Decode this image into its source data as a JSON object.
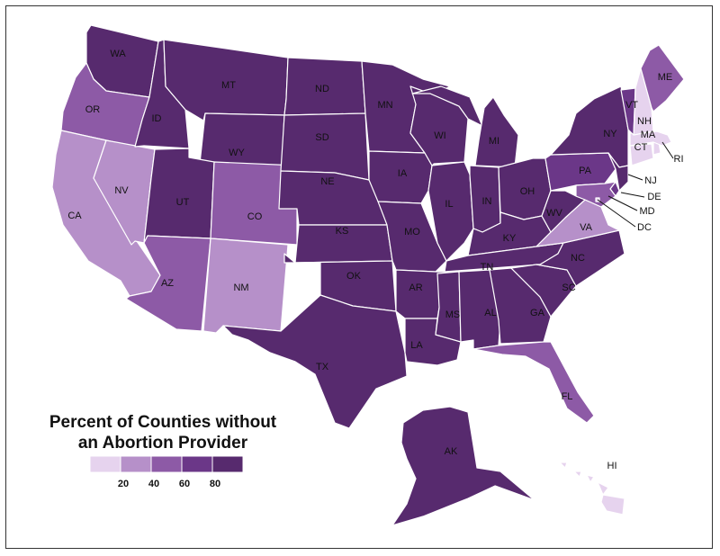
{
  "legend": {
    "title_line1": "Percent of Counties without",
    "title_line2": "an Abortion Provider",
    "ticks": [
      "20",
      "40",
      "60",
      "80"
    ],
    "colors": [
      "#e6d3ee",
      "#b690c9",
      "#8d5aa6",
      "#6b3788",
      "#572a6e"
    ]
  },
  "states": [
    {
      "code": "WA",
      "label": "WA",
      "bin": 4
    },
    {
      "code": "OR",
      "label": "OR",
      "bin": 2
    },
    {
      "code": "CA",
      "label": "CA",
      "bin": 1
    },
    {
      "code": "NV",
      "label": "NV",
      "bin": 1
    },
    {
      "code": "ID",
      "label": "ID",
      "bin": 4
    },
    {
      "code": "MT",
      "label": "MT",
      "bin": 4
    },
    {
      "code": "WY",
      "label": "WY",
      "bin": 4
    },
    {
      "code": "UT",
      "label": "UT",
      "bin": 4
    },
    {
      "code": "AZ",
      "label": "AZ",
      "bin": 2
    },
    {
      "code": "CO",
      "label": "CO",
      "bin": 2
    },
    {
      "code": "NM",
      "label": "NM",
      "bin": 1
    },
    {
      "code": "ND",
      "label": "ND",
      "bin": 4
    },
    {
      "code": "SD",
      "label": "SD",
      "bin": 4
    },
    {
      "code": "NE",
      "label": "NE",
      "bin": 4
    },
    {
      "code": "KS",
      "label": "KS",
      "bin": 4
    },
    {
      "code": "OK",
      "label": "OK",
      "bin": 4
    },
    {
      "code": "TX",
      "label": "TX",
      "bin": 4
    },
    {
      "code": "MN",
      "label": "MN",
      "bin": 4
    },
    {
      "code": "IA",
      "label": "IA",
      "bin": 4
    },
    {
      "code": "MO",
      "label": "MO",
      "bin": 4
    },
    {
      "code": "AR",
      "label": "AR",
      "bin": 4
    },
    {
      "code": "LA",
      "label": "LA",
      "bin": 4
    },
    {
      "code": "WI",
      "label": "WI",
      "bin": 4
    },
    {
      "code": "IL",
      "label": "IL",
      "bin": 4
    },
    {
      "code": "MI",
      "label": "MI",
      "bin": 4
    },
    {
      "code": "IN",
      "label": "IN",
      "bin": 4
    },
    {
      "code": "OH",
      "label": "OH",
      "bin": 4
    },
    {
      "code": "KY",
      "label": "KY",
      "bin": 4
    },
    {
      "code": "TN",
      "label": "TN",
      "bin": 4
    },
    {
      "code": "MS",
      "label": "MS",
      "bin": 4
    },
    {
      "code": "AL",
      "label": "AL",
      "bin": 4
    },
    {
      "code": "GA",
      "label": "GA",
      "bin": 4
    },
    {
      "code": "FL",
      "label": "FL",
      "bin": 2
    },
    {
      "code": "SC",
      "label": "SC",
      "bin": 4
    },
    {
      "code": "NC",
      "label": "NC",
      "bin": 4
    },
    {
      "code": "VA",
      "label": "VA",
      "bin": 1
    },
    {
      "code": "WV",
      "label": "WV",
      "bin": 4
    },
    {
      "code": "PA",
      "label": "PA",
      "bin": 3
    },
    {
      "code": "NY",
      "label": "NY",
      "bin": 4
    },
    {
      "code": "NJ",
      "label": "NJ",
      "bin": 4
    },
    {
      "code": "DE",
      "label": "DE",
      "bin": 3
    },
    {
      "code": "MD",
      "label": "MD",
      "bin": 2
    },
    {
      "code": "DC",
      "label": "DC",
      "bin": 0
    },
    {
      "code": "CT",
      "label": "CT",
      "bin": 0
    },
    {
      "code": "RI",
      "label": "RI",
      "bin": 0
    },
    {
      "code": "MA",
      "label": "MA",
      "bin": 0
    },
    {
      "code": "VT",
      "label": "VT",
      "bin": 3
    },
    {
      "code": "NH",
      "label": "NH",
      "bin": 0
    },
    {
      "code": "ME",
      "label": "ME",
      "bin": 2
    },
    {
      "code": "AK",
      "label": "AK",
      "bin": 4
    },
    {
      "code": "HI",
      "label": "HI",
      "bin": 0
    }
  ]
}
